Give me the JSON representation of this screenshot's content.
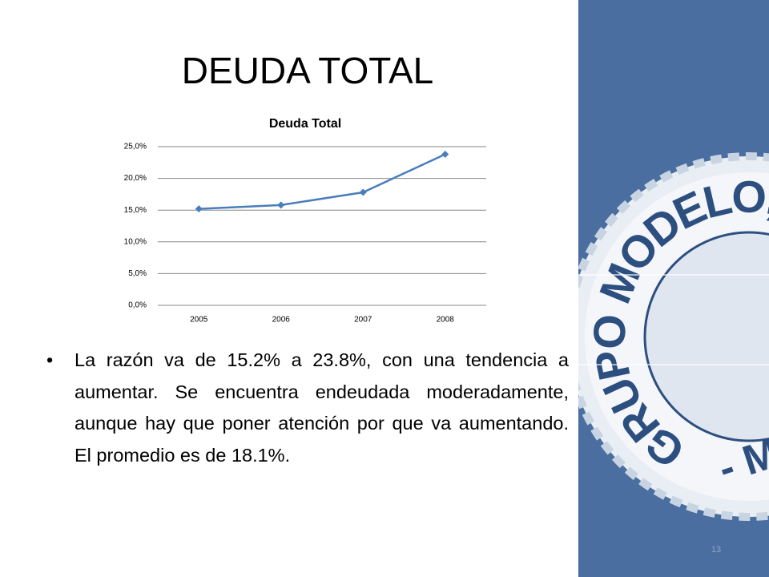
{
  "slide": {
    "title": "DEUDA TOTAL",
    "bullet": "La razón va de 15.2% a 23.8%,  con una tendencia a aumentar. Se encuentra endeudada moderadamente, aunque hay que poner atención por que va aumentando. El promedio es de 18.1%.",
    "page_number": "13",
    "logo_texts": [
      "GRUPO MODELO, S",
      "- M"
    ]
  },
  "chart_data": {
    "type": "line",
    "title": "Deuda Total",
    "categories": [
      "2005",
      "2006",
      "2007",
      "2008"
    ],
    "series": [
      {
        "name": "Deuda Total",
        "color": "#4a7ebb",
        "values": [
          15.2,
          15.8,
          17.8,
          23.8
        ]
      }
    ],
    "ylim": [
      0,
      25
    ],
    "yticks": [
      {
        "value": 0,
        "label": "0,0%"
      },
      {
        "value": 5,
        "label": "5,0%"
      },
      {
        "value": 10,
        "label": "10,0%"
      },
      {
        "value": 15,
        "label": "15,0%"
      },
      {
        "value": 20,
        "label": "20,0%"
      },
      {
        "value": 25,
        "label": "25,0%"
      }
    ],
    "grid": true
  }
}
